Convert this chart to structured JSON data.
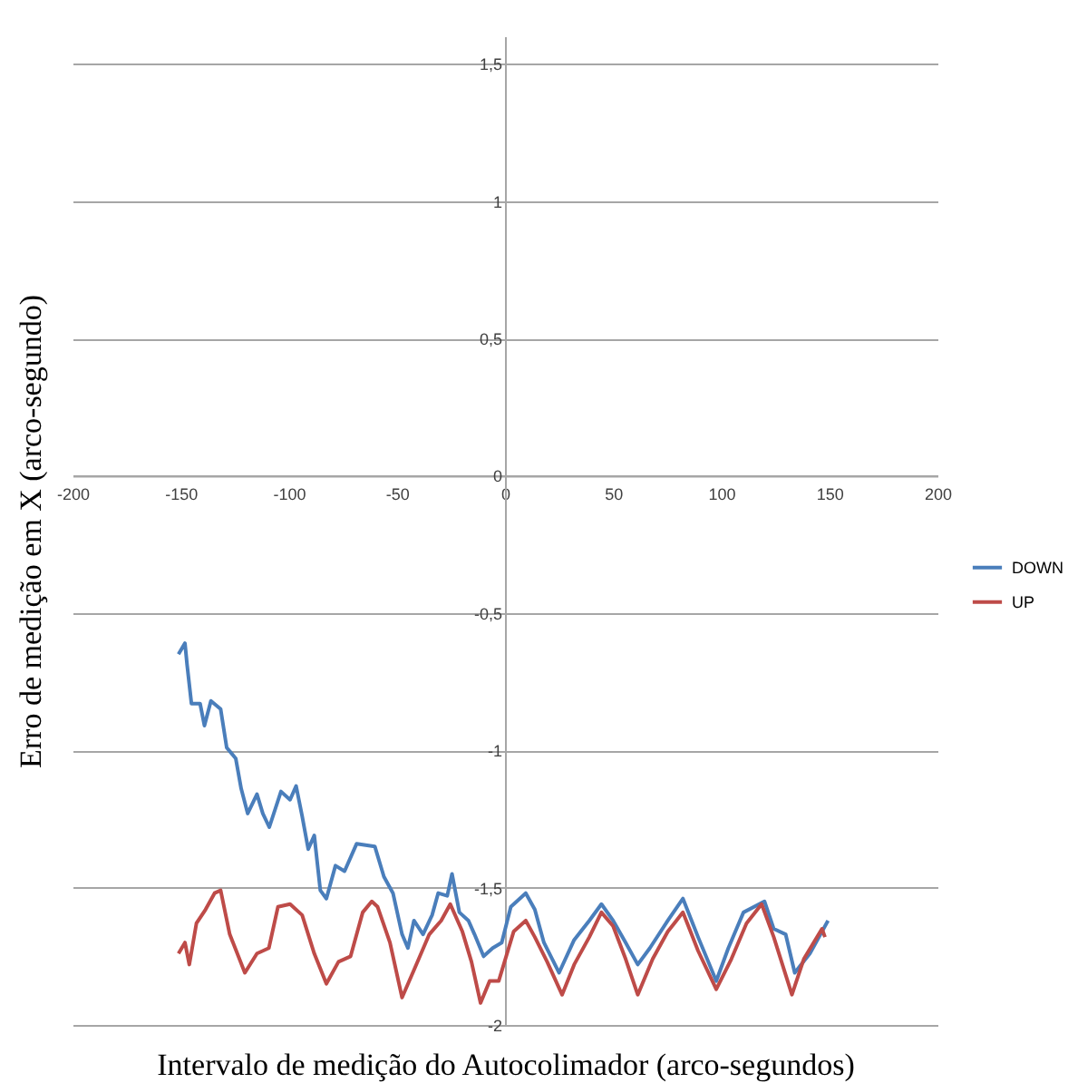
{
  "chart_data": {
    "type": "line",
    "xlabel": "Intervalo de medição do Autocolimador (arco-segundos)",
    "ylabel": "Erro de medição em X (arco-segundo)",
    "xlim": [
      -200,
      200
    ],
    "xticks": [
      -200,
      -150,
      -100,
      -50,
      0,
      50,
      100,
      150,
      200
    ],
    "ylim": [
      -2,
      1.6
    ],
    "yticks": [
      {
        "value": -2,
        "label": "-2"
      },
      {
        "value": -1.5,
        "label": "-1,5"
      },
      {
        "value": -1,
        "label": "-1"
      },
      {
        "value": -0.5,
        "label": "-0,5"
      },
      {
        "value": 0,
        "label": "0"
      },
      {
        "value": 0.5,
        "label": "0,5"
      },
      {
        "value": 1,
        "label": "1"
      },
      {
        "value": 1.5,
        "label": "1,5"
      }
    ],
    "grid": "y",
    "legend": "right",
    "line_style": "solid",
    "marker": "none",
    "series": [
      {
        "name": "DOWN",
        "color": "#4a7ebb",
        "x": [
          -151,
          -148,
          -147,
          -145,
          -141,
          -139,
          -136,
          -131.5,
          -128.7,
          -124.5,
          -122,
          -119,
          -114.7,
          -112,
          -109,
          -103.6,
          -99.4,
          -96.6,
          -93.8,
          -91,
          -88.2,
          -85.4,
          -82.6,
          -78.4,
          -74.2,
          -68.6,
          -60.2,
          -56,
          -51.8,
          -47.6,
          -44.9,
          -42.1,
          -37.9,
          -33.7,
          -30.9,
          -26.7,
          -24.5,
          -21.1,
          -16.9,
          -14.1,
          -9.9,
          -5.7,
          -1.5,
          2.7,
          9.6,
          13.8,
          18,
          25,
          32,
          39,
          44.6,
          50,
          55.8,
          61.4,
          67,
          75.3,
          82.3,
          89.3,
          97.7,
          103.3,
          110.3,
          120,
          124.3,
          129.8,
          134,
          141,
          149.4
        ],
        "values": [
          -0.65,
          -0.61,
          -0.69,
          -0.83,
          -0.83,
          -0.91,
          -0.82,
          -0.85,
          -0.99,
          -1.03,
          -1.14,
          -1.23,
          -1.16,
          -1.23,
          -1.28,
          -1.15,
          -1.18,
          -1.13,
          -1.24,
          -1.36,
          -1.31,
          -1.51,
          -1.54,
          -1.42,
          -1.44,
          -1.34,
          -1.35,
          -1.46,
          -1.52,
          -1.67,
          -1.72,
          -1.62,
          -1.67,
          -1.6,
          -1.52,
          -1.53,
          -1.45,
          -1.59,
          -1.62,
          -1.67,
          -1.75,
          -1.72,
          -1.7,
          -1.57,
          -1.52,
          -1.58,
          -1.7,
          -1.81,
          -1.69,
          -1.62,
          -1.56,
          -1.62,
          -1.7,
          -1.78,
          -1.72,
          -1.62,
          -1.54,
          -1.68,
          -1.84,
          -1.72,
          -1.59,
          -1.55,
          -1.65,
          -1.67,
          -1.81,
          -1.74,
          -1.62
        ]
      },
      {
        "name": "UP",
        "color": "#be4b48",
        "x": [
          -151,
          -148,
          -146,
          -142.7,
          -138.5,
          -134.3,
          -131.5,
          -127.3,
          -120.3,
          -114.7,
          -109.2,
          -105,
          -99.4,
          -93.8,
          -88.2,
          -82.6,
          -77,
          -71.4,
          -65.8,
          -61.6,
          -58.9,
          -53.2,
          -47.6,
          -42.1,
          -35,
          -29.5,
          -25.3,
          -19.7,
          -15.5,
          -11.3,
          -7.1,
          -2.9,
          4,
          9.6,
          13.8,
          19.5,
          26.4,
          32,
          39,
          44.6,
          50,
          55.8,
          61.4,
          68.3,
          75.3,
          82.3,
          89.3,
          97.7,
          104.7,
          111.7,
          118.7,
          124.3,
          132.7,
          138.2,
          146.6,
          148
        ],
        "values": [
          -1.74,
          -1.7,
          -1.78,
          -1.63,
          -1.58,
          -1.52,
          -1.51,
          -1.67,
          -1.81,
          -1.74,
          -1.72,
          -1.57,
          -1.56,
          -1.6,
          -1.74,
          -1.85,
          -1.77,
          -1.75,
          -1.59,
          -1.55,
          -1.57,
          -1.7,
          -1.9,
          -1.8,
          -1.67,
          -1.62,
          -1.56,
          -1.66,
          -1.77,
          -1.92,
          -1.84,
          -1.84,
          -1.66,
          -1.62,
          -1.68,
          -1.77,
          -1.89,
          -1.78,
          -1.68,
          -1.59,
          -1.64,
          -1.76,
          -1.89,
          -1.76,
          -1.66,
          -1.59,
          -1.73,
          -1.87,
          -1.76,
          -1.63,
          -1.56,
          -1.68,
          -1.89,
          -1.76,
          -1.65,
          -1.68
        ]
      }
    ]
  }
}
